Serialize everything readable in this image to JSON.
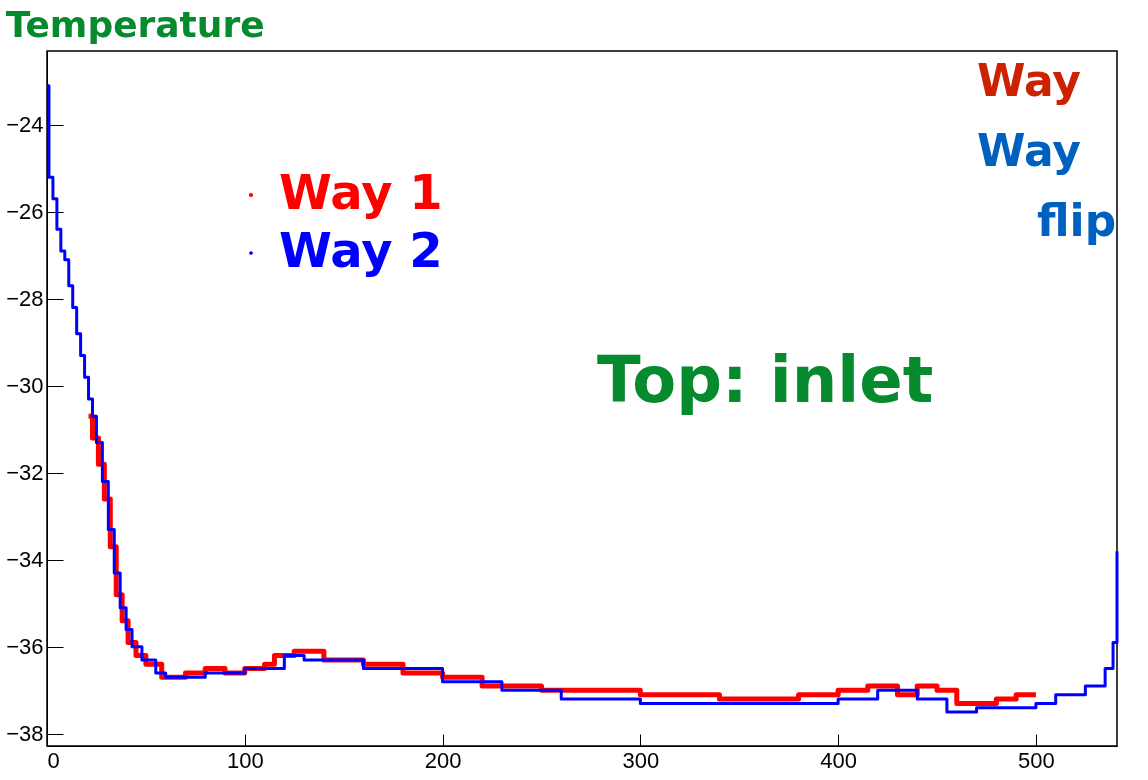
{
  "chart_data": {
    "type": "step",
    "title": "Temperature",
    "annotations": [
      "Top: inlet",
      "Way",
      "Way",
      "flip"
    ],
    "xlim": [
      0,
      541
    ],
    "xticks": [
      0,
      100,
      200,
      300,
      400,
      500
    ],
    "ylim": [
      -38.28,
      -22.3
    ],
    "yticks": [
      -38,
      -36,
      -34,
      -32,
      -30,
      -28,
      -26,
      -24
    ],
    "grid": false,
    "legend": "top left",
    "series": [
      {
        "name": "Way 1",
        "color": "#ff0000",
        "x": [
          21,
          23,
          26,
          29,
          32,
          35,
          38,
          41,
          45,
          50,
          58,
          70,
          80,
          90,
          100,
          110,
          115,
          125,
          140,
          160,
          180,
          200,
          220,
          250,
          280,
          300,
          340,
          380,
          400,
          415,
          430,
          440,
          450,
          460,
          480,
          490,
          500
        ],
        "values": [
          -30.7,
          -31.2,
          -31.8,
          -32.6,
          -33.7,
          -34.8,
          -35.4,
          -35.9,
          -36.2,
          -36.4,
          -36.7,
          -36.6,
          -36.5,
          -36.6,
          -36.5,
          -36.4,
          -36.2,
          -36.1,
          -36.3,
          -36.4,
          -36.6,
          -36.7,
          -36.9,
          -37.0,
          -37.0,
          -37.1,
          -37.2,
          -37.1,
          -37.0,
          -36.9,
          -37.1,
          -36.9,
          -37.0,
          -37.3,
          -37.2,
          -37.1,
          -37.1
        ]
      },
      {
        "name": "Way 2",
        "color": "#0000ff",
        "x": [
          0,
          1,
          3,
          5,
          7,
          9,
          11,
          13,
          15,
          17,
          19,
          21,
          23,
          25,
          28,
          31,
          34,
          37,
          40,
          43,
          48,
          55,
          60,
          80,
          100,
          120,
          130,
          160,
          200,
          230,
          260,
          300,
          350,
          400,
          420,
          440,
          455,
          470,
          500,
          510,
          525,
          535,
          539,
          541
        ],
        "values": [
          -23.1,
          -25.2,
          -25.7,
          -26.4,
          -26.9,
          -27.1,
          -27.7,
          -28.2,
          -28.8,
          -29.3,
          -29.8,
          -30.3,
          -30.7,
          -31.3,
          -32.2,
          -33.3,
          -34.3,
          -35.1,
          -35.6,
          -36.0,
          -36.3,
          -36.6,
          -36.7,
          -36.6,
          -36.5,
          -36.2,
          -36.3,
          -36.5,
          -36.8,
          -37.0,
          -37.2,
          -37.3,
          -37.3,
          -37.2,
          -37.0,
          -37.2,
          -37.5,
          -37.4,
          -37.3,
          -37.1,
          -36.9,
          -36.5,
          -35.9,
          -33.8
        ]
      }
    ]
  }
}
